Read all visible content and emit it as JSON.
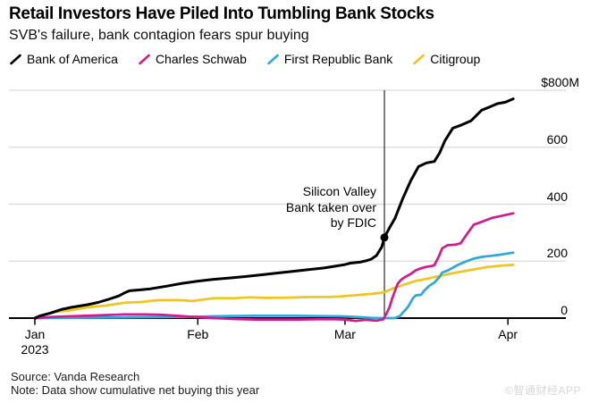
{
  "chart_data": {
    "type": "line",
    "title": "Retail Investors Have Piled Into Tumbling Bank Stocks",
    "subtitle": "SVB's failure, bank contagion fears spur buying",
    "unit": "$M",
    "x_unit": "days since Jan 1, 2023",
    "grid": true,
    "legend_position": "top",
    "y_axis": {
      "range": [
        0,
        800
      ],
      "ticks": [
        {
          "value": 800,
          "label": "$800M"
        },
        {
          "value": 600,
          "label": "600"
        },
        {
          "value": 400,
          "label": "400"
        },
        {
          "value": 200,
          "label": "200"
        },
        {
          "value": 0,
          "label": "0"
        }
      ]
    },
    "x_axis": {
      "ticks": [
        {
          "day": 0,
          "label": "Jan",
          "sublabel": "2023"
        },
        {
          "day": 31,
          "label": "Feb"
        },
        {
          "day": 59,
          "label": "Mar"
        },
        {
          "day": 90,
          "label": "Apr"
        }
      ]
    },
    "event": {
      "day": 66.5,
      "label_lines": [
        "Silicon Valley",
        "Bank taken over",
        "by FDIC"
      ],
      "marker": {
        "series": "Bank of America",
        "value": 283
      }
    },
    "series": [
      {
        "name": "Bank of America",
        "color": "#000000",
        "points": [
          [
            0,
            0
          ],
          [
            1,
            8
          ],
          [
            3,
            18
          ],
          [
            5,
            30
          ],
          [
            7,
            38
          ],
          [
            10,
            47
          ],
          [
            12,
            55
          ],
          [
            14,
            66
          ],
          [
            16,
            78
          ],
          [
            17,
            88
          ],
          [
            18,
            96
          ],
          [
            20,
            99
          ],
          [
            22,
            103
          ],
          [
            25,
            112
          ],
          [
            28,
            122
          ],
          [
            31,
            130
          ],
          [
            34,
            136
          ],
          [
            37,
            141
          ],
          [
            40,
            146
          ],
          [
            43,
            152
          ],
          [
            46,
            158
          ],
          [
            49,
            164
          ],
          [
            52,
            170
          ],
          [
            55,
            176
          ],
          [
            57,
            182
          ],
          [
            59,
            188
          ],
          [
            60,
            193
          ],
          [
            62,
            197
          ],
          [
            63,
            201
          ],
          [
            64,
            207
          ],
          [
            65,
            220
          ],
          [
            66,
            250
          ],
          [
            66.5,
            283
          ],
          [
            67.5,
            318
          ],
          [
            68.5,
            350
          ],
          [
            70,
            420
          ],
          [
            71.5,
            482
          ],
          [
            73,
            532
          ],
          [
            74.5,
            545
          ],
          [
            76,
            550
          ],
          [
            77,
            580
          ],
          [
            78,
            622
          ],
          [
            79.5,
            667
          ],
          [
            81,
            677
          ],
          [
            83,
            693
          ],
          [
            85,
            730
          ],
          [
            86.5,
            741
          ],
          [
            88,
            753
          ],
          [
            89.5,
            758
          ],
          [
            91,
            770
          ]
        ]
      },
      {
        "name": "Charles Schwab",
        "color": "#d6198c",
        "points": [
          [
            0,
            0
          ],
          [
            3,
            4
          ],
          [
            7,
            7
          ],
          [
            11,
            9
          ],
          [
            14,
            11
          ],
          [
            17,
            13
          ],
          [
            21,
            13
          ],
          [
            24,
            12
          ],
          [
            27,
            8
          ],
          [
            31,
            3
          ],
          [
            34,
            0
          ],
          [
            38,
            -3
          ],
          [
            42,
            -5
          ],
          [
            46,
            -5
          ],
          [
            50,
            -5
          ],
          [
            54,
            -4
          ],
          [
            57,
            -4
          ],
          [
            59,
            -5
          ],
          [
            61,
            -10
          ],
          [
            63,
            -6
          ],
          [
            65,
            -9
          ],
          [
            66.3,
            -4
          ],
          [
            67,
            20
          ],
          [
            67.5,
            40
          ],
          [
            68,
            70
          ],
          [
            69,
            120
          ],
          [
            69.7,
            135
          ],
          [
            70.5,
            145
          ],
          [
            71.5,
            155
          ],
          [
            72.5,
            168
          ],
          [
            73.5,
            175
          ],
          [
            74.5,
            180
          ],
          [
            75.5,
            183
          ],
          [
            76,
            186
          ],
          [
            76.8,
            215
          ],
          [
            77.5,
            245
          ],
          [
            78.5,
            256
          ],
          [
            80,
            258
          ],
          [
            81,
            263
          ],
          [
            82,
            290
          ],
          [
            83.5,
            328
          ],
          [
            85,
            338
          ],
          [
            87,
            352
          ],
          [
            88.5,
            358
          ],
          [
            91,
            368
          ]
        ]
      },
      {
        "name": "First Republic Bank",
        "color": "#2da8d8",
        "points": [
          [
            0,
            0
          ],
          [
            7,
            1
          ],
          [
            14,
            2
          ],
          [
            21,
            3
          ],
          [
            28,
            4
          ],
          [
            31,
            5
          ],
          [
            35,
            7
          ],
          [
            42,
            8
          ],
          [
            49,
            8
          ],
          [
            56,
            7
          ],
          [
            59,
            6
          ],
          [
            62,
            3
          ],
          [
            64,
            1
          ],
          [
            66,
            0
          ],
          [
            68.5,
            0
          ],
          [
            69.5,
            8
          ],
          [
            70,
            19
          ],
          [
            71,
            40
          ],
          [
            71.5,
            56
          ],
          [
            72,
            72
          ],
          [
            72.5,
            80
          ],
          [
            73.5,
            82
          ],
          [
            74,
            95
          ],
          [
            75,
            113
          ],
          [
            76,
            125
          ],
          [
            77,
            145
          ],
          [
            77.5,
            160
          ],
          [
            78.5,
            167
          ],
          [
            79.5,
            177
          ],
          [
            80.5,
            187
          ],
          [
            82,
            199
          ],
          [
            83.5,
            209
          ],
          [
            85,
            215
          ],
          [
            87,
            219
          ],
          [
            89,
            224
          ],
          [
            91,
            230
          ]
        ]
      },
      {
        "name": "Citigroup",
        "color": "#f0c51e",
        "points": [
          [
            0,
            0
          ],
          [
            2,
            13
          ],
          [
            4,
            22
          ],
          [
            7,
            28
          ],
          [
            10,
            38
          ],
          [
            13.5,
            44
          ],
          [
            17,
            54
          ],
          [
            20.5,
            57
          ],
          [
            23.5,
            63
          ],
          [
            27.5,
            63
          ],
          [
            30,
            60
          ],
          [
            34,
            70
          ],
          [
            38,
            70
          ],
          [
            41,
            73
          ],
          [
            44,
            71
          ],
          [
            48,
            72
          ],
          [
            52,
            74
          ],
          [
            56,
            74
          ],
          [
            58,
            76
          ],
          [
            60,
            79
          ],
          [
            62,
            82
          ],
          [
            64,
            85
          ],
          [
            65.5,
            88
          ],
          [
            66.5,
            91
          ],
          [
            67.5,
            99
          ],
          [
            68.5,
            107
          ],
          [
            69.5,
            113
          ],
          [
            70.5,
            119
          ],
          [
            71.5,
            125
          ],
          [
            72.5,
            131
          ],
          [
            73.5,
            134
          ],
          [
            75,
            140
          ],
          [
            76,
            144
          ],
          [
            77.5,
            150
          ],
          [
            79,
            156
          ],
          [
            80.5,
            161
          ],
          [
            82,
            166
          ],
          [
            84,
            173
          ],
          [
            86,
            179
          ],
          [
            88,
            183
          ],
          [
            90,
            186
          ],
          [
            91,
            187
          ]
        ]
      }
    ]
  },
  "footer": {
    "source": "Source: Vanda Research",
    "note": "Note: Data show cumulative net buying this year",
    "watermark": "©智通财经APP"
  }
}
